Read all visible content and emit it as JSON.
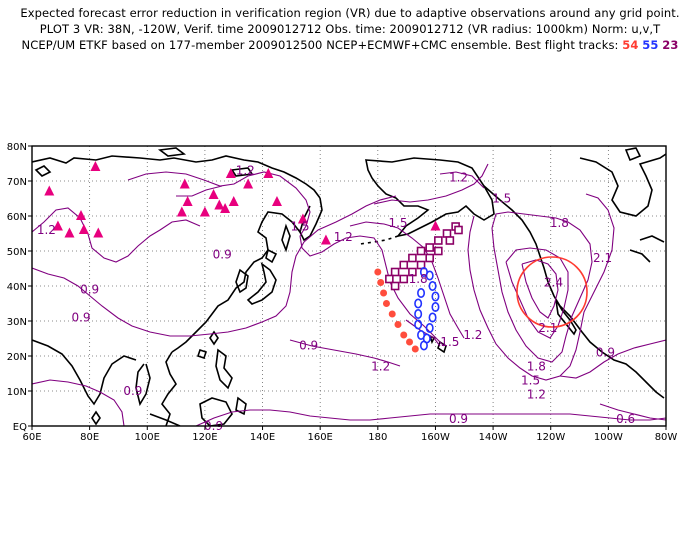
{
  "header": {
    "line1": "Expected forecast error reduction in verification region (VR) due to adaptive observations around any grid point.",
    "line2": "PLOT 3 VR: 38N, -120W, Verif. time 2009012712 Obs. time: 2009012712 (VR radius: 1000km) Norm: u,v,T",
    "line3": "NCEP/UM ETKF based on 177-member 2009012500 NCEP+ECMWF+CMC ensemble. Best flight tracks:",
    "tracks": [
      {
        "label": "54",
        "color": "#ff3b30"
      },
      {
        "label": "55",
        "color": "#2233ff"
      },
      {
        "label": "23",
        "color": "#8b0066"
      }
    ]
  },
  "map": {
    "lon_min": 60,
    "lon_max": 280,
    "lat_min": 0,
    "lat_max": 80,
    "x_ticks": [
      {
        "lon": 60,
        "label": "60E"
      },
      {
        "lon": 80,
        "label": "80E"
      },
      {
        "lon": 100,
        "label": "100E"
      },
      {
        "lon": 120,
        "label": "120E"
      },
      {
        "lon": 140,
        "label": "140E"
      },
      {
        "lon": 160,
        "label": "160E"
      },
      {
        "lon": 180,
        "label": "180"
      },
      {
        "lon": 200,
        "label": "160W"
      },
      {
        "lon": 220,
        "label": "140W"
      },
      {
        "lon": 240,
        "label": "120W"
      },
      {
        "lon": 260,
        "label": "100W"
      },
      {
        "lon": 280,
        "label": "80W"
      }
    ],
    "y_ticks": [
      {
        "lat": 0,
        "label": "EQ"
      },
      {
        "lat": 10,
        "label": "10N"
      },
      {
        "lat": 20,
        "label": "20N"
      },
      {
        "lat": 30,
        "label": "30N"
      },
      {
        "lat": 40,
        "label": "40N"
      },
      {
        "lat": 50,
        "label": "50N"
      },
      {
        "lat": 60,
        "label": "60N"
      },
      {
        "lat": 70,
        "label": "70N"
      },
      {
        "lat": 80,
        "label": "80N"
      }
    ],
    "colors": {
      "contour": "#800080",
      "coast": "#000000",
      "grid": "#666666",
      "vr": "#ff3b30",
      "track54": "#ff4d3d",
      "track55": "#2233ff",
      "track23": "#8b0066",
      "raob": "#e8007e"
    },
    "contour_labels": [
      {
        "text": "1.2",
        "lon": 65,
        "lat": 56
      },
      {
        "text": "0.9",
        "lon": 80,
        "lat": 39
      },
      {
        "text": "0.9",
        "lon": 77,
        "lat": 31
      },
      {
        "text": "0.9",
        "lon": 126,
        "lat": 49
      },
      {
        "text": "1.2",
        "lon": 134,
        "lat": 73
      },
      {
        "text": "1.5",
        "lon": 153,
        "lat": 57
      },
      {
        "text": "1.2",
        "lon": 168,
        "lat": 54
      },
      {
        "text": "1.5",
        "lon": 187,
        "lat": 58
      },
      {
        "text": "1.8",
        "lon": 194,
        "lat": 42
      },
      {
        "text": "1.2",
        "lon": 208,
        "lat": 71
      },
      {
        "text": "1.5",
        "lon": 223,
        "lat": 65
      },
      {
        "text": "1.8",
        "lon": 243,
        "lat": 58
      },
      {
        "text": "2.1",
        "lon": 258,
        "lat": 48
      },
      {
        "text": "2.4",
        "lon": 241,
        "lat": 41
      },
      {
        "text": "2.1",
        "lon": 239,
        "lat": 28
      },
      {
        "text": "1.8",
        "lon": 235,
        "lat": 17
      },
      {
        "text": "1.5",
        "lon": 233,
        "lat": 13
      },
      {
        "text": "1.2",
        "lon": 235,
        "lat": 9
      },
      {
        "text": "1.5",
        "lon": 205,
        "lat": 24
      },
      {
        "text": "1.2",
        "lon": 181,
        "lat": 17
      },
      {
        "text": "0.9",
        "lon": 156,
        "lat": 23
      },
      {
        "text": "0.9",
        "lon": 95,
        "lat": 10
      },
      {
        "text": "1.2",
        "lon": 213,
        "lat": 26
      },
      {
        "text": "0.9",
        "lon": 208,
        "lat": 2
      },
      {
        "text": "0.9",
        "lon": 259,
        "lat": 21
      },
      {
        "text": "0.6",
        "lon": 266,
        "lat": 2
      },
      {
        "text": "0.9",
        "lon": 123,
        "lat": 0
      }
    ],
    "raob_sites": [
      [
        82,
        74
      ],
      [
        66,
        67
      ],
      [
        69,
        57
      ],
      [
        77,
        60
      ],
      [
        73,
        55
      ],
      [
        78,
        56
      ],
      [
        83,
        55
      ],
      [
        113,
        69
      ],
      [
        112,
        61
      ],
      [
        114,
        64
      ],
      [
        120,
        61
      ],
      [
        123,
        66
      ],
      [
        125,
        63
      ],
      [
        130,
        64
      ],
      [
        135,
        69
      ],
      [
        129,
        72
      ],
      [
        127,
        62
      ],
      [
        145,
        64
      ],
      [
        142,
        72
      ],
      [
        154,
        59
      ],
      [
        162,
        53
      ],
      [
        200,
        57
      ]
    ],
    "track54": [
      [
        180,
        44
      ],
      [
        181,
        41
      ],
      [
        182,
        38
      ],
      [
        183,
        35
      ],
      [
        185,
        32
      ],
      [
        187,
        29
      ],
      [
        189,
        26
      ],
      [
        191,
        24
      ],
      [
        193,
        22
      ]
    ],
    "track55": [
      [
        196,
        44
      ],
      [
        198,
        43
      ],
      [
        199,
        40
      ],
      [
        200,
        37
      ],
      [
        200,
        34
      ],
      [
        199,
        31
      ],
      [
        198,
        28
      ],
      [
        197,
        25
      ],
      [
        196,
        23
      ],
      [
        195,
        26
      ],
      [
        194,
        29
      ],
      [
        194,
        32
      ],
      [
        194,
        35
      ],
      [
        195,
        38
      ]
    ],
    "track23": [
      [
        207,
        57
      ],
      [
        204,
        55
      ],
      [
        201,
        53
      ],
      [
        198,
        51
      ],
      [
        195,
        50
      ],
      [
        192,
        48
      ],
      [
        189,
        46
      ],
      [
        186,
        44
      ],
      [
        184,
        42
      ],
      [
        186,
        40
      ],
      [
        189,
        42
      ],
      [
        192,
        44
      ],
      [
        195,
        46
      ],
      [
        198,
        48
      ],
      [
        201,
        50
      ],
      [
        205,
        53
      ],
      [
        208,
        56
      ]
    ]
  }
}
